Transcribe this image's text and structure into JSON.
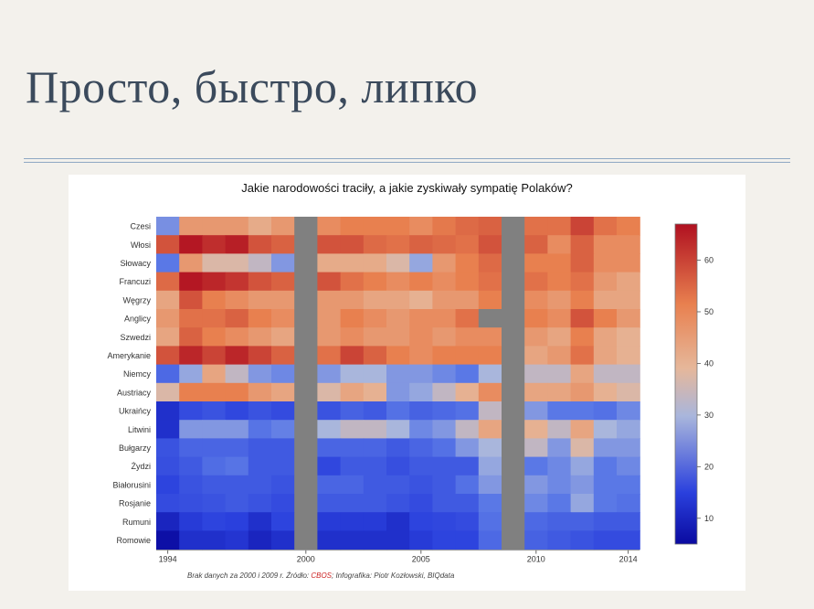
{
  "slide": {
    "title": "Просто, быстро, липко"
  },
  "chart_data": {
    "type": "heatmap",
    "title": "Jakie narodowości traciły, a jakie zyskiwały sympatię Polaków?",
    "source": {
      "prefix": "Brak danych za 2000 i 2009 r. Źródło: ",
      "org": "CBOS",
      "suffix": "; Infografika: Piotr Kozłowski, BIQdata"
    },
    "xlabel": "",
    "ylabel": "",
    "x": [
      1994,
      1995,
      1996,
      1997,
      1998,
      1999,
      2000,
      2001,
      2002,
      2003,
      2004,
      2005,
      2006,
      2007,
      2008,
      2009,
      2010,
      2011,
      2012,
      2013,
      2014
    ],
    "x_ticks": [
      "1994",
      "2000",
      "2005",
      "2010",
      "2014"
    ],
    "missing_years": [
      2000,
      2009
    ],
    "colorbar": {
      "min": 5,
      "max": 67,
      "ticks": [
        "10",
        "20",
        "30",
        "40",
        "50",
        "60"
      ]
    },
    "rows": [
      {
        "label": "Czesi",
        "values": [
          33,
          48,
          48,
          48,
          45,
          48,
          null,
          50,
          52,
          52,
          52,
          50,
          53,
          55,
          56,
          null,
          54,
          54,
          60,
          54,
          52
        ]
      },
      {
        "label": "Włosi",
        "values": [
          58,
          66,
          63,
          65,
          58,
          56,
          null,
          58,
          58,
          55,
          54,
          56,
          55,
          54,
          58,
          null,
          56,
          50,
          56,
          50,
          50
        ]
      },
      {
        "label": "Słowacy",
        "values": [
          30,
          48,
          42,
          42,
          40,
          34,
          null,
          45,
          45,
          45,
          42,
          36,
          48,
          52,
          55,
          null,
          52,
          52,
          56,
          50,
          50
        ]
      },
      {
        "label": "Francuzi",
        "values": [
          55,
          66,
          64,
          62,
          58,
          56,
          null,
          58,
          54,
          52,
          50,
          52,
          50,
          52,
          54,
          null,
          54,
          52,
          54,
          48,
          46
        ]
      },
      {
        "label": "Węgrzy",
        "values": [
          46,
          58,
          52,
          50,
          48,
          48,
          null,
          48,
          48,
          46,
          46,
          44,
          48,
          48,
          52,
          null,
          50,
          48,
          52,
          46,
          46
        ]
      },
      {
        "label": "Anglicy",
        "values": [
          48,
          54,
          54,
          56,
          52,
          50,
          null,
          48,
          52,
          50,
          48,
          50,
          50,
          54,
          null,
          null,
          52,
          50,
          58,
          52,
          48
        ]
      },
      {
        "label": "Szwedzi",
        "values": [
          46,
          56,
          52,
          50,
          48,
          46,
          null,
          48,
          50,
          48,
          48,
          50,
          48,
          50,
          50,
          null,
          48,
          46,
          52,
          46,
          44
        ]
      },
      {
        "label": "Amerykanie",
        "values": [
          58,
          64,
          60,
          64,
          60,
          56,
          null,
          54,
          60,
          56,
          52,
          50,
          52,
          52,
          52,
          null,
          46,
          48,
          54,
          46,
          44
        ]
      },
      {
        "label": "Niemcy",
        "values": [
          26,
          36,
          46,
          40,
          34,
          32,
          null,
          34,
          38,
          38,
          34,
          34,
          32,
          30,
          38,
          null,
          40,
          40,
          46,
          40,
          40
        ]
      },
      {
        "label": "Austriacy",
        "values": [
          42,
          52,
          52,
          52,
          48,
          46,
          null,
          42,
          46,
          44,
          34,
          36,
          40,
          44,
          50,
          null,
          46,
          46,
          48,
          44,
          42
        ]
      },
      {
        "label": "Ukraińcy",
        "values": [
          12,
          18,
          20,
          17,
          20,
          18,
          null,
          20,
          24,
          22,
          28,
          24,
          26,
          28,
          40,
          null,
          34,
          30,
          30,
          28,
          32
        ]
      },
      {
        "label": "Litwini",
        "values": [
          12,
          34,
          34,
          34,
          29,
          31,
          null,
          38,
          40,
          40,
          38,
          32,
          34,
          40,
          46,
          null,
          44,
          40,
          46,
          38,
          36
        ]
      },
      {
        "label": "Bułgarzy",
        "values": [
          20,
          25,
          25,
          25,
          22,
          22,
          null,
          25,
          25,
          25,
          22,
          25,
          28,
          34,
          38,
          null,
          40,
          34,
          42,
          34,
          34
        ]
      },
      {
        "label": "Żydzi",
        "values": [
          19,
          22,
          27,
          29,
          22,
          22,
          null,
          17,
          22,
          22,
          19,
          22,
          22,
          22,
          36,
          null,
          30,
          32,
          36,
          30,
          32
        ]
      },
      {
        "label": "Białorusini",
        "values": [
          16,
          20,
          22,
          22,
          22,
          20,
          null,
          25,
          25,
          22,
          22,
          20,
          22,
          28,
          34,
          null,
          34,
          32,
          34,
          30,
          30
        ]
      },
      {
        "label": "Rosjanie",
        "values": [
          18,
          19,
          20,
          22,
          20,
          18,
          null,
          22,
          22,
          22,
          20,
          18,
          22,
          22,
          30,
          null,
          32,
          30,
          36,
          30,
          28
        ]
      },
      {
        "label": "Rumuni",
        "values": [
          10,
          14,
          16,
          15,
          12,
          16,
          null,
          14,
          14,
          14,
          12,
          16,
          17,
          18,
          28,
          null,
          26,
          24,
          24,
          22,
          22
        ]
      },
      {
        "label": "Romowie",
        "values": [
          6,
          12,
          12,
          13,
          10,
          12,
          null,
          12,
          12,
          12,
          12,
          14,
          16,
          16,
          26,
          null,
          24,
          22,
          20,
          18,
          18
        ]
      }
    ]
  }
}
